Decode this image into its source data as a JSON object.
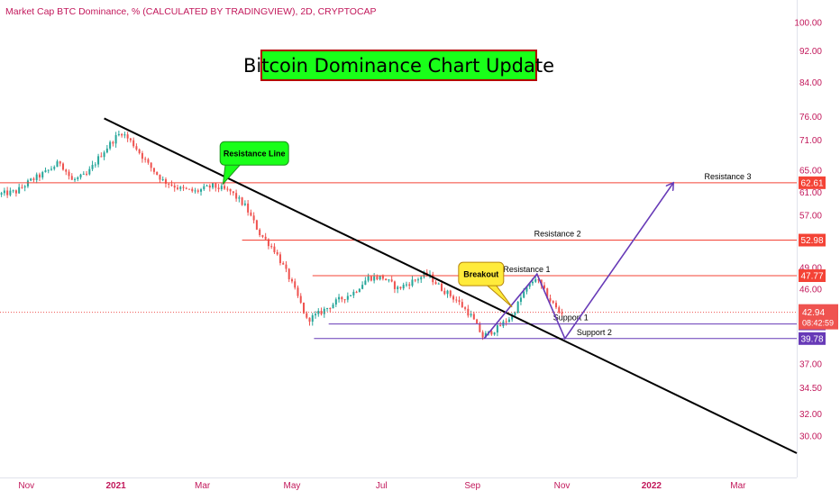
{
  "header": {
    "title": "Market Cap BTC Dominance, % (CALCULATED BY TRADINGVIEW), 2D, CRYPTOCAP"
  },
  "banner": {
    "text": "Bitcoin Dominance Chart Update"
  },
  "colors": {
    "up": "#26a69a",
    "down": "#ef5350",
    "resistance": "#f44336",
    "support": "#673ab7",
    "trendline": "#000000",
    "callout_green": "#19ff19",
    "callout_yellow": "#ffeb3b",
    "axis_text": "#c2185b"
  },
  "chart_data": {
    "type": "candlestick",
    "title": "Bitcoin Dominance Chart Update",
    "series_name": "Market Cap BTC Dominance, % (CALCULATED BY TRADINGVIEW), 2D, CRYPTOCAP",
    "y_scale": "log",
    "ylim": [
      28.2,
      103
    ],
    "xlim": [
      "2020-10-14",
      "2022-04-10"
    ],
    "y_ticks": [
      "100.00",
      "92.00",
      "84.00",
      "76.00",
      "71.00",
      "65.00",
      "61.00",
      "57.00",
      "49.00",
      "46.00",
      "37.00",
      "34.50",
      "32.00",
      "30.00"
    ],
    "x_ticks": [
      {
        "label": "Nov",
        "date": "2020-11-01"
      },
      {
        "label": "2021",
        "date": "2021-01-01"
      },
      {
        "label": "Mar",
        "date": "2021-03-01"
      },
      {
        "label": "May",
        "date": "2021-05-01"
      },
      {
        "label": "Jul",
        "date": "2021-07-01"
      },
      {
        "label": "Sep",
        "date": "2021-09-01"
      },
      {
        "label": "Nov",
        "date": "2021-11-01"
      },
      {
        "label": "2022",
        "date": "2022-01-01"
      },
      {
        "label": "Mar",
        "date": "2022-03-01"
      }
    ],
    "price_path": [
      [
        "2020-10-14",
        60.5
      ],
      [
        "2020-10-26",
        61.0
      ],
      [
        "2020-11-05",
        63.0
      ],
      [
        "2020-11-15",
        64.5
      ],
      [
        "2020-11-25",
        66.5
      ],
      [
        "2020-12-03",
        63.0
      ],
      [
        "2020-12-13",
        64.0
      ],
      [
        "2020-12-23",
        68.0
      ],
      [
        "2021-01-02",
        71.5
      ],
      [
        "2021-01-06",
        72.5
      ],
      [
        "2021-01-14",
        70.0
      ],
      [
        "2021-01-24",
        66.0
      ],
      [
        "2021-02-03",
        63.0
      ],
      [
        "2021-02-15",
        61.5
      ],
      [
        "2021-02-25",
        61.0
      ],
      [
        "2021-03-09",
        62.0
      ],
      [
        "2021-03-21",
        61.0
      ],
      [
        "2021-03-31",
        58.5
      ],
      [
        "2021-04-10",
        54.0
      ],
      [
        "2021-04-20",
        51.5
      ],
      [
        "2021-04-30",
        47.5
      ],
      [
        "2021-05-08",
        44.0
      ],
      [
        "2021-05-12",
        42.0
      ],
      [
        "2021-05-18",
        42.5
      ],
      [
        "2021-05-26",
        43.5
      ],
      [
        "2021-06-03",
        44.5
      ],
      [
        "2021-06-13",
        45.5
      ],
      [
        "2021-06-23",
        47.5
      ],
      [
        "2021-07-03",
        47.5
      ],
      [
        "2021-07-13",
        46.0
      ],
      [
        "2021-07-23",
        47.0
      ],
      [
        "2021-08-02",
        48.0
      ],
      [
        "2021-08-12",
        46.0
      ],
      [
        "2021-08-22",
        44.5
      ],
      [
        "2021-09-01",
        42.5
      ],
      [
        "2021-09-09",
        40.0
      ],
      [
        "2021-09-19",
        41.0
      ],
      [
        "2021-09-29",
        42.5
      ],
      [
        "2021-10-07",
        45.5
      ],
      [
        "2021-10-15",
        47.5
      ],
      [
        "2021-10-23",
        45.0
      ],
      [
        "2021-10-31",
        42.94
      ]
    ],
    "current_price": "42.94",
    "countdown": "08:42:59",
    "levels": [
      {
        "name": "Resistance 3",
        "value": 62.61,
        "label": "62.61",
        "kind": "resistance",
        "from": "2020-10-14",
        "label_date": "2022-02-22"
      },
      {
        "name": "Resistance 2",
        "value": 52.98,
        "label": "52.98",
        "kind": "resistance",
        "from": "2021-03-28",
        "label_date": "2021-10-29"
      },
      {
        "name": "Resistance 1",
        "value": 47.77,
        "label": "47.77",
        "kind": "resistance",
        "from": "2021-05-15",
        "label_date": "2021-10-08"
      },
      {
        "name": "Support 1",
        "value": 41.51,
        "label": "41.51",
        "kind": "support",
        "from": "2021-05-26",
        "label_date": "2021-11-07"
      },
      {
        "name": "Support 2",
        "value": 39.78,
        "label": "39.78",
        "kind": "support",
        "from": "2021-05-16",
        "label_date": "2021-11-23"
      }
    ],
    "trendline": {
      "from": [
        "2020-12-24",
        75.5
      ],
      "to": [
        "2022-04-10",
        28.5
      ]
    },
    "projection_path": [
      [
        "2021-09-09",
        39.78
      ],
      [
        "2021-10-15",
        48.0
      ],
      [
        "2021-11-03",
        39.78
      ],
      [
        "2022-01-16",
        62.61
      ]
    ],
    "callouts": [
      {
        "text": "Resistance Line",
        "color": "green",
        "anchor": [
          "2021-03-15",
          62.4
        ],
        "box": [
          "2021-03-13",
          68.2
        ]
      },
      {
        "text": "Breakout",
        "color": "yellow",
        "anchor": [
          "2021-09-28",
          43.6
        ],
        "box": [
          "2021-08-25",
          48.0
        ]
      }
    ]
  }
}
